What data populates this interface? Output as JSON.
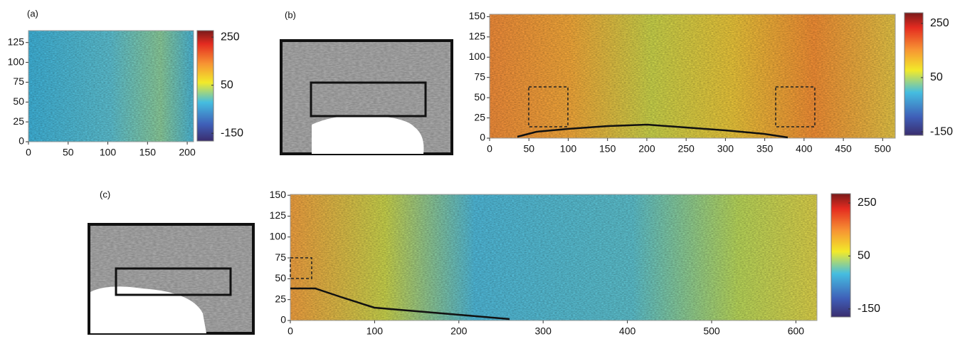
{
  "chart_data": [
    {
      "type": "heatmap",
      "panel_label": "(a)",
      "xlim": [
        0,
        208
      ],
      "ylim": [
        0,
        140
      ],
      "xticks": [
        0,
        50,
        100,
        150,
        200
      ],
      "yticks": [
        0,
        25,
        50,
        75,
        100,
        125
      ],
      "colorbar": {
        "lim": [
          -182,
          277
        ],
        "ticks": [
          250,
          50,
          -150
        ]
      }
    },
    {
      "type": "heatmap",
      "panel_label": "(b)",
      "xlim": [
        0,
        516
      ],
      "ylim": [
        0,
        153
      ],
      "xticks": [
        0,
        50,
        100,
        150,
        200,
        250,
        300,
        350,
        400,
        450,
        500
      ],
      "yticks": [
        0,
        25,
        50,
        75,
        100,
        125,
        150
      ],
      "colorbar": {
        "lim": [
          -163,
          289
        ],
        "ticks": [
          250,
          50,
          -150
        ]
      }
    },
    {
      "type": "heatmap",
      "panel_label": "(c)",
      "xlim": [
        0,
        625
      ],
      "ylim": [
        0,
        151
      ],
      "xticks": [
        0,
        100,
        200,
        300,
        400,
        500,
        600
      ],
      "yticks": [
        0,
        25,
        50,
        75,
        100,
        125,
        150
      ],
      "colorbar": {
        "lim": [
          -180,
          285
        ],
        "ticks": [
          250,
          50,
          -150
        ]
      }
    }
  ]
}
